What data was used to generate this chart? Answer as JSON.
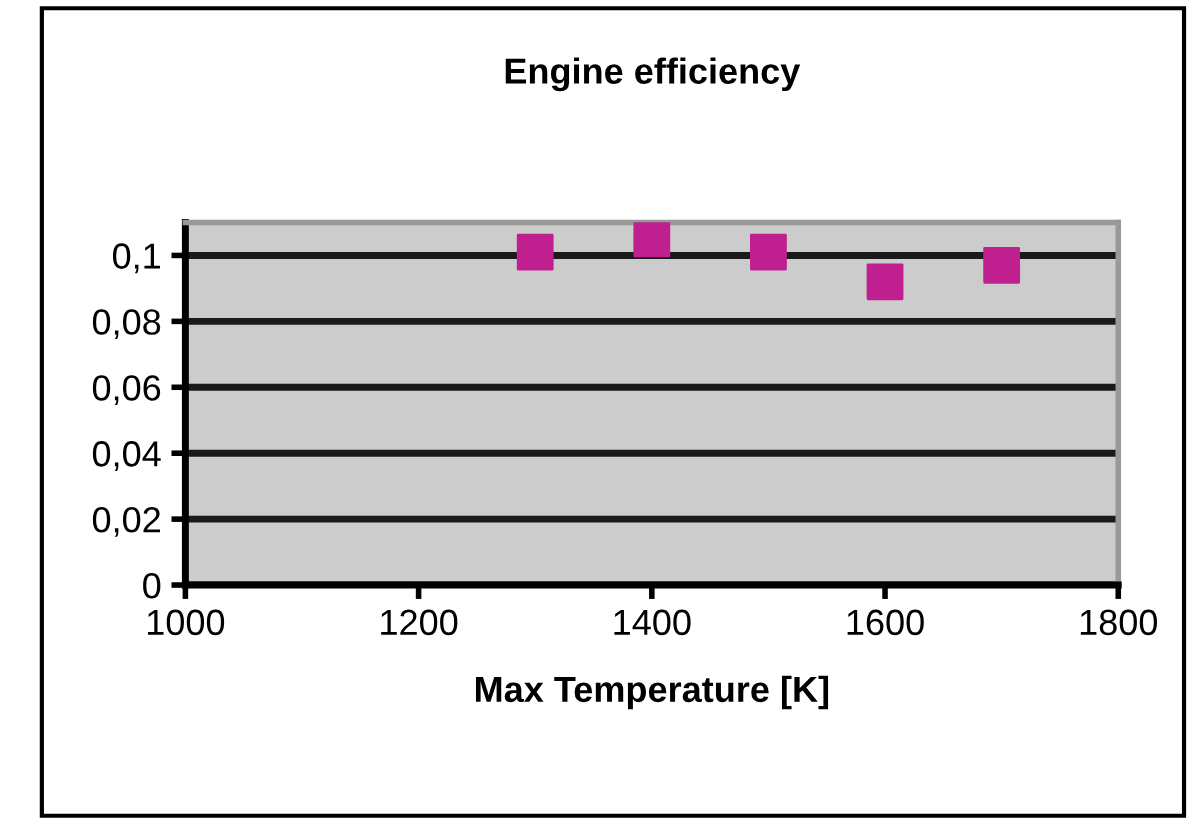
{
  "chart_data": {
    "type": "scatter",
    "title": "Engine efficiency",
    "xlabel": "Max Temperature [K]",
    "x": [
      1300,
      1400,
      1500,
      1600,
      1700
    ],
    "series": [
      {
        "color": "#c0208f",
        "values": [
          0.101,
          0.105,
          0.101,
          0.092,
          0.097
        ]
      }
    ],
    "xlim": [
      1000,
      1800
    ],
    "xticks": [
      1000,
      1200,
      1400,
      1600,
      1800
    ],
    "ylim": [
      0,
      0.11
    ],
    "yticks": [
      {
        "value": 0,
        "label": "0"
      },
      {
        "value": 0.02,
        "label": "0,02"
      },
      {
        "value": 0.04,
        "label": "0,04"
      },
      {
        "value": 0.06,
        "label": "0,06"
      },
      {
        "value": 0.08,
        "label": "0,08"
      },
      {
        "value": 0.1,
        "label": "0,1"
      }
    ],
    "grid": "y",
    "marker": "square",
    "legend": false
  }
}
